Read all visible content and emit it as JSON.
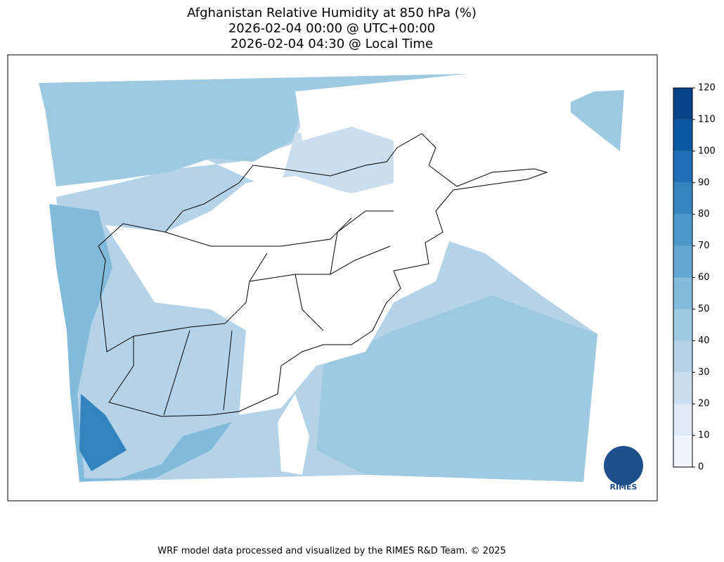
{
  "title": [
    "Afghanistan Relative Humidity at 850 hPa (%)",
    "2026-02-04 00:00 @ UTC+00:00",
    "2026-02-04 04:30 @ Local Time"
  ],
  "colorbar": {
    "levels": [
      0,
      10,
      20,
      30,
      40,
      50,
      60,
      70,
      80,
      90,
      100,
      110,
      120
    ],
    "colors": [
      "#f0f6fd",
      "#deebf7",
      "#cadef0",
      "#b4d3e9",
      "#9ecae1",
      "#82badb",
      "#63a8d3",
      "#4b97c9",
      "#3383be",
      "#1f6eb3",
      "#0c58a2",
      "#08408a"
    ]
  },
  "logo": "RIMES",
  "footer": "WRF model data processed and visualized by the RIMES R&D Team. © 2025"
}
